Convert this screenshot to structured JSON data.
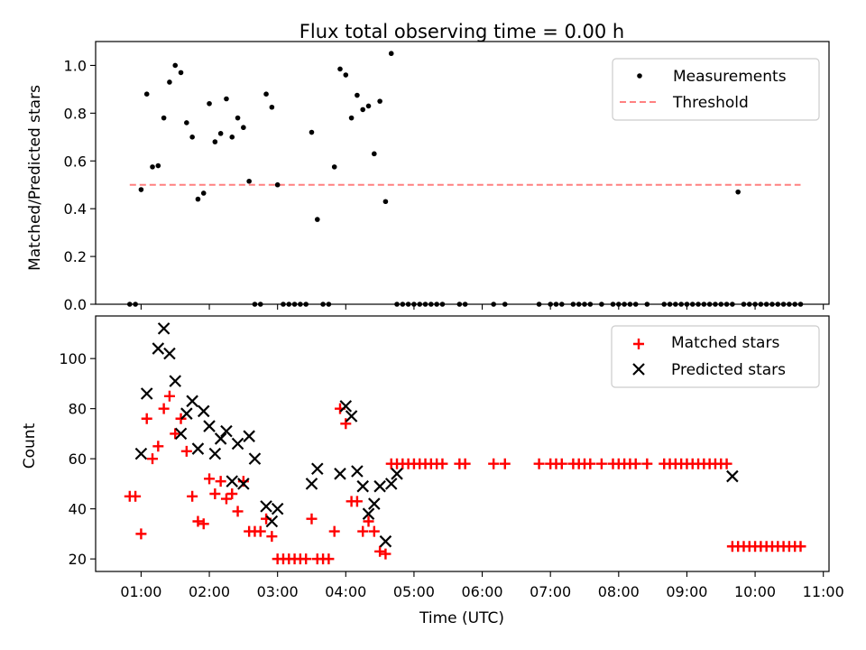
{
  "title": "Flux total observing time = 0.00 h",
  "colors": {
    "threshold": "#ff8080",
    "matched": "#ff0000",
    "predicted": "#000000",
    "measurements": "#000000"
  },
  "chart_data": [
    {
      "type": "scatter",
      "panel": "top",
      "title": "Flux total observing time = 0.00 h",
      "xlabel": "",
      "ylabel": "Matched/Predicted stars",
      "xlim": [
        "00:20",
        "11:05"
      ],
      "ylim": [
        0,
        1.1
      ],
      "yticks": [
        "0.0",
        "0.2",
        "0.4",
        "0.6",
        "0.8",
        "1.0"
      ],
      "legend": {
        "position": "upper-right",
        "entries": [
          "Measurements",
          "Threshold"
        ]
      },
      "threshold": {
        "name": "Threshold",
        "value": 0.5,
        "x_start": "00:50",
        "x_end": "10:40",
        "style": "dashed"
      },
      "series": [
        {
          "name": "Measurements",
          "x": [
            "00:50",
            "00:55",
            "01:00",
            "01:05",
            "01:10",
            "01:15",
            "01:20",
            "01:25",
            "01:30",
            "01:35",
            "01:40",
            "01:45",
            "01:50",
            "01:55",
            "02:00",
            "02:05",
            "02:10",
            "02:15",
            "02:20",
            "02:25",
            "02:30",
            "02:35",
            "02:40",
            "02:45",
            "02:50",
            "02:55",
            "03:00",
            "03:05",
            "03:10",
            "03:15",
            "03:20",
            "03:25",
            "03:30",
            "03:35",
            "03:40",
            "03:45",
            "03:50",
            "03:55",
            "04:00",
            "04:05",
            "04:10",
            "04:15",
            "04:20",
            "04:25",
            "04:30",
            "04:35",
            "04:40",
            "04:45",
            "04:50",
            "04:55",
            "05:00",
            "05:05",
            "05:10",
            "05:15",
            "05:20",
            "05:25",
            "05:40",
            "05:45",
            "06:10",
            "06:20",
            "06:50",
            "07:00",
            "07:05",
            "07:10",
            "07:20",
            "07:25",
            "07:30",
            "07:35",
            "07:45",
            "07:55",
            "08:00",
            "08:05",
            "08:10",
            "08:15",
            "08:25",
            "08:40",
            "08:45",
            "08:50",
            "08:55",
            "09:00",
            "09:05",
            "09:10",
            "09:15",
            "09:20",
            "09:25",
            "09:30",
            "09:35",
            "09:40",
            "09:45",
            "09:50",
            "09:55",
            "10:00",
            "10:05",
            "10:10",
            "10:15",
            "10:20",
            "10:25",
            "10:30",
            "10:35",
            "10:40"
          ],
          "y": [
            0,
            0,
            0.48,
            0.88,
            0.575,
            0.58,
            0.78,
            0.93,
            1.0,
            0.97,
            0.76,
            0.7,
            0.44,
            0.465,
            0.84,
            0.68,
            0.715,
            0.86,
            0.7,
            0.78,
            0.74,
            0.515,
            0,
            0,
            0.88,
            0.825,
            0.5,
            0,
            0,
            0,
            0,
            0,
            0.72,
            0.355,
            0,
            0,
            0.575,
            0.985,
            0.96,
            0.78,
            0.875,
            0.815,
            0.83,
            0.63,
            0.85,
            0.43,
            1.05,
            0,
            0,
            0,
            0,
            0,
            0,
            0,
            0,
            0,
            0,
            0,
            0,
            0,
            0,
            0,
            0,
            0,
            0,
            0,
            0,
            0,
            0,
            0,
            0,
            0,
            0,
            0,
            0,
            0,
            0,
            0,
            0,
            0,
            0,
            0,
            0,
            0,
            0,
            0,
            0,
            0,
            0.47,
            0,
            0,
            0,
            0,
            0,
            0,
            0,
            0,
            0,
            0,
            0
          ]
        }
      ]
    },
    {
      "type": "scatter",
      "panel": "bottom",
      "title": "",
      "xlabel": "Time (UTC)",
      "ylabel": "Count",
      "xlim": [
        "00:20",
        "11:05"
      ],
      "ylim": [
        15,
        117
      ],
      "xticks": [
        "01:00",
        "02:00",
        "03:00",
        "04:00",
        "05:00",
        "06:00",
        "07:00",
        "08:00",
        "09:00",
        "10:00",
        "11:00"
      ],
      "yticks": [
        "20",
        "40",
        "60",
        "80",
        "100"
      ],
      "legend": {
        "position": "upper-right",
        "entries": [
          "Matched stars",
          "Predicted stars"
        ]
      },
      "series": [
        {
          "name": "Matched stars",
          "marker": "plus",
          "x": [
            "00:50",
            "00:55",
            "01:00",
            "01:05",
            "01:10",
            "01:15",
            "01:20",
            "01:25",
            "01:30",
            "01:35",
            "01:40",
            "01:45",
            "01:50",
            "01:55",
            "02:00",
            "02:05",
            "02:10",
            "02:15",
            "02:20",
            "02:25",
            "02:30",
            "02:35",
            "02:40",
            "02:45",
            "02:50",
            "02:55",
            "03:00",
            "03:05",
            "03:10",
            "03:15",
            "03:20",
            "03:25",
            "03:30",
            "03:35",
            "03:40",
            "03:45",
            "03:50",
            "03:55",
            "04:00",
            "04:05",
            "04:10",
            "04:15",
            "04:20",
            "04:25",
            "04:30",
            "04:35",
            "04:40",
            "04:45",
            "04:50",
            "04:55",
            "05:00",
            "05:05",
            "05:10",
            "05:15",
            "05:20",
            "05:25",
            "05:40",
            "05:45",
            "06:10",
            "06:20",
            "06:50",
            "07:00",
            "07:05",
            "07:10",
            "07:20",
            "07:25",
            "07:30",
            "07:35",
            "07:45",
            "07:55",
            "08:00",
            "08:05",
            "08:10",
            "08:15",
            "08:25",
            "08:40",
            "08:45",
            "08:50",
            "08:55",
            "09:00",
            "09:05",
            "09:10",
            "09:15",
            "09:20",
            "09:25",
            "09:30",
            "09:35",
            "09:40",
            "09:45",
            "09:50",
            "09:55",
            "10:00",
            "10:05",
            "10:10",
            "10:15",
            "10:20",
            "10:25",
            "10:30",
            "10:35",
            "10:40"
          ],
          "y": [
            45,
            45,
            30,
            76,
            60,
            65,
            80,
            85,
            70,
            76,
            63,
            45,
            35,
            34,
            52,
            46,
            51,
            44,
            46,
            39,
            51,
            31,
            31,
            31,
            36,
            29,
            20,
            20,
            20,
            20,
            20,
            20,
            36,
            20,
            20,
            20,
            31,
            80,
            74,
            43,
            43,
            31,
            35,
            31,
            23,
            22,
            58,
            58,
            58,
            58,
            58,
            58,
            58,
            58,
            58,
            58,
            58,
            58,
            58,
            58,
            58,
            58,
            58,
            58,
            58,
            58,
            58,
            58,
            58,
            58,
            58,
            58,
            58,
            58,
            58,
            58,
            58,
            58,
            58,
            58,
            58,
            58,
            58,
            58,
            58,
            58,
            58,
            25,
            25,
            25,
            25,
            25,
            25,
            25,
            25,
            25,
            25,
            25,
            25,
            25
          ]
        },
        {
          "name": "Predicted stars",
          "marker": "x",
          "x": [
            "01:00",
            "01:05",
            "01:15",
            "01:20",
            "01:25",
            "01:30",
            "01:35",
            "01:40",
            "01:45",
            "01:50",
            "01:55",
            "02:00",
            "02:05",
            "02:10",
            "02:15",
            "02:20",
            "02:25",
            "02:30",
            "02:35",
            "02:40",
            "02:50",
            "02:55",
            "03:00",
            "03:30",
            "03:35",
            "03:55",
            "04:00",
            "04:05",
            "04:10",
            "04:15",
            "04:20",
            "04:25",
            "04:30",
            "04:35",
            "04:40",
            "04:45",
            "09:40"
          ],
          "y": [
            62,
            86,
            104,
            112,
            102,
            91,
            70,
            78,
            83,
            64,
            79,
            73,
            62,
            68,
            71,
            51,
            66,
            50,
            69,
            60,
            41,
            35,
            40,
            50,
            56,
            54,
            81,
            77,
            55,
            49,
            38,
            42,
            49,
            27,
            50,
            54,
            53
          ]
        }
      ]
    }
  ]
}
